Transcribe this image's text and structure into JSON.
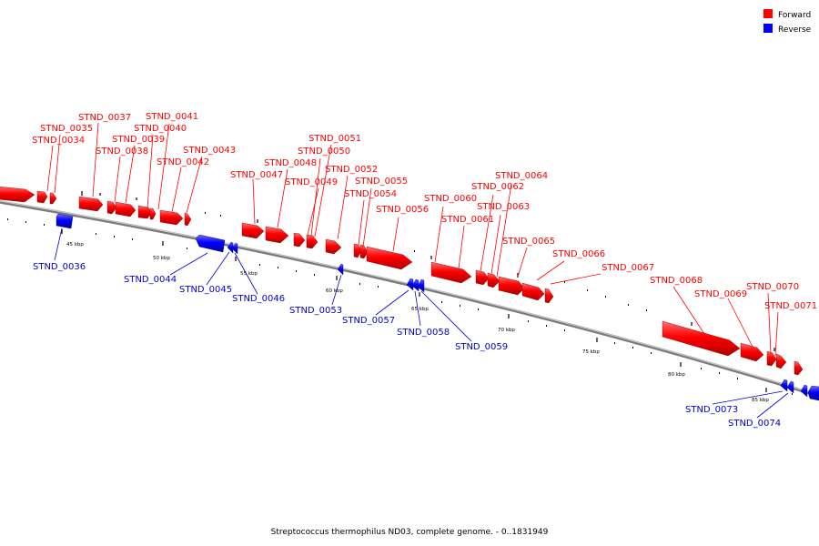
{
  "colors": {
    "forward": "#ff0000",
    "reverse": "#0000ff",
    "label_forward": "#ff0000",
    "label_reverse": "#0000cc",
    "backbone": "#808080"
  },
  "legend": {
    "forward": "Forward",
    "reverse": "Reverse"
  },
  "caption": "Streptococcus thermophilus ND03, complete genome. - 0..1831949",
  "tick_labels": [
    "45 kbp",
    "50 kbp",
    "55 kbp",
    "60 kbp",
    "65 kbp",
    "70 kbp",
    "75 kbp",
    "80 kbp",
    "85 kbp"
  ],
  "gene_labels": {
    "forward": [
      "STND_0034",
      "STND_0035",
      "STND_0037",
      "STND_0038",
      "STND_0039",
      "STND_0040",
      "STND_0041",
      "STND_0042",
      "STND_0043",
      "STND_0047",
      "STND_0048",
      "STND_0049",
      "STND_0050",
      "STND_0051",
      "STND_0052",
      "STND_0054",
      "STND_0055",
      "STND_0056",
      "STND_0060",
      "STND_0061",
      "STND_0062",
      "STND_0063",
      "STND_0064",
      "STND_0065",
      "STND_0066",
      "STND_0067",
      "STND_0068",
      "STND_0069",
      "STND_0070",
      "STND_0071"
    ],
    "reverse": [
      "STND_0036",
      "STND_0044",
      "STND_0045",
      "STND_0046",
      "STND_0053",
      "STND_0057",
      "STND_0058",
      "STND_0059",
      "STND_0073",
      "STND_0074"
    ]
  }
}
